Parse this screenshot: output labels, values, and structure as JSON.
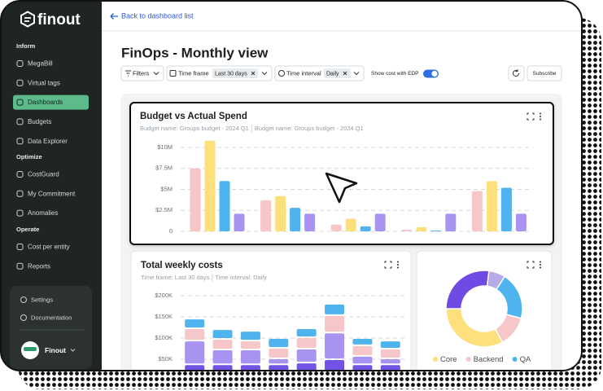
{
  "sidebar": {
    "logo": "finout",
    "active": "Dashboards",
    "sections": [
      {
        "title": "Inform",
        "items": [
          "MegaBill",
          "Virtual tags",
          "Dashboards",
          "Budgets",
          "Data Explorer"
        ]
      },
      {
        "title": "Optimize",
        "items": [
          "CostGuard",
          "My Commitment",
          "Anomalies"
        ]
      },
      {
        "title": "Operate",
        "items": [
          "Cost per entity",
          "Reports"
        ]
      }
    ],
    "footer": [
      "Settings",
      "Documentation"
    ],
    "user": "Finout"
  },
  "header": {
    "back": "Back to dashboard list",
    "title": "FinOps - Monthly view"
  },
  "toolbar": {
    "filters": "Filters",
    "time_frame": {
      "label": "Time frame",
      "value": "Last 30 days"
    },
    "time_interval": {
      "label": "Time interval",
      "value": "Daily"
    },
    "edp": {
      "label": "Show cost with EDP",
      "on": true
    },
    "subscribe": "Subscribe"
  },
  "chart_data": [
    {
      "type": "bar",
      "title": "Budget vs Actual Spend",
      "subtitle": [
        "Budget name: Groups budget - 2024 Q1",
        "Budget name: Groups budget - 2024 Q1"
      ],
      "ylim": [
        0,
        11000000
      ],
      "yticks": [
        0,
        {
          "value": 2500000,
          "label": "$2.5M"
        },
        {
          "value": 5000000,
          "label": "$5M"
        },
        {
          "value": 7500000,
          "label": "$7.5M"
        },
        {
          "value": 10000000,
          "label": "$10M"
        }
      ],
      "grid": true,
      "series": [
        {
          "color": "#f6c6c9",
          "values": [
            7500000,
            3700000,
            800000,
            200000,
            4800000
          ]
        },
        {
          "color": "#fde07c",
          "values": [
            10800000,
            4200000,
            1500000,
            500000,
            6000000
          ]
        },
        {
          "color": "#4fb3ee",
          "values": [
            6000000,
            2800000,
            600000,
            100000,
            5200000
          ]
        },
        {
          "color": "#a894f0",
          "values": [
            2100000,
            2100000,
            2100000,
            2100000,
            2100000
          ]
        }
      ]
    },
    {
      "type": "stacked_bar",
      "title": "Total weekly costs",
      "subtitle": [
        "Time frame: Last 30 days",
        "Time interval: Daily"
      ],
      "ylim": [
        0,
        200000
      ],
      "yticks": [
        {
          "value": 50000,
          "label": "$50K"
        },
        {
          "value": 100000,
          "label": "$100K"
        },
        {
          "value": 150000,
          "label": "$150K"
        },
        {
          "value": 200000,
          "label": "$200K"
        }
      ],
      "grid": true,
      "series": [
        {
          "color": "#7352e6",
          "values": [
            38000,
            38000,
            38000,
            38000,
            42000,
            50000,
            38000,
            38000
          ]
        },
        {
          "color": "#a894f0",
          "values": [
            56000,
            35000,
            35000,
            14000,
            33000,
            63000,
            20000,
            14000
          ]
        },
        {
          "color": "#f6c6c9",
          "values": [
            29000,
            25000,
            21000,
            25000,
            27000,
            41000,
            25000,
            23000
          ]
        },
        {
          "color": "#4fb3ee",
          "values": [
            23000,
            23000,
            23000,
            23000,
            21000,
            27000,
            17000,
            19000
          ]
        }
      ]
    },
    {
      "type": "donut",
      "categories": [
        "Core",
        "Backend",
        "QA",
        null,
        null
      ],
      "values": [
        33,
        13,
        20,
        7,
        27
      ],
      "colors": [
        "#fde07c",
        "#f6c6c9",
        "#4fb3ee",
        "#b6aae9",
        "#6f4be3"
      ]
    }
  ]
}
